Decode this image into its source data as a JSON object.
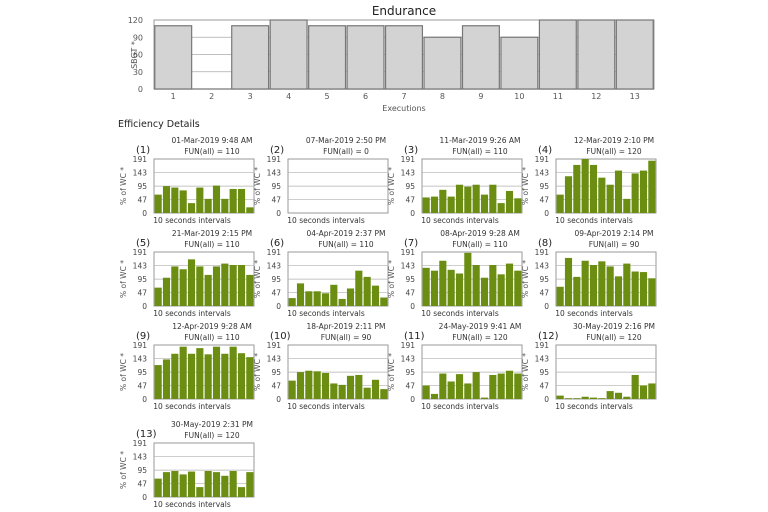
{
  "chart_data": [
    {
      "type": "bar",
      "title": "Endurance",
      "xlabel": "Executions",
      "ylabel": "SBGT *",
      "ylim": [
        0,
        120
      ],
      "yticks": [
        "0",
        "30",
        "60",
        "90",
        "120"
      ],
      "categories": [
        "1",
        "2",
        "3",
        "4",
        "5",
        "6",
        "7",
        "8",
        "9",
        "10",
        "11",
        "12",
        "13"
      ],
      "values": [
        110,
        0,
        110,
        120,
        110,
        110,
        110,
        90,
        110,
        90,
        120,
        120,
        120
      ],
      "grid": true,
      "bar_color": "#d3d3d3",
      "bar_edge": "#777777"
    }
  ],
  "section_title": "Efficiency Details",
  "details": {
    "ylabel": "% of WC *",
    "xlabel": "10 seconds intervals",
    "ylim": [
      0,
      191
    ],
    "yticks": [
      "0",
      "47",
      "95",
      "143",
      "191"
    ],
    "bar_color": "#6b8e12",
    "panels": [
      {
        "index": "(1)",
        "date": "01-Mar-2019 9:48 AM",
        "fun": "FUN(all) = 110",
        "values": [
          65,
          95,
          90,
          80,
          35,
          90,
          50,
          97,
          50,
          85,
          85,
          20
        ]
      },
      {
        "index": "(2)",
        "date": "07-Mar-2019 2:50 PM",
        "fun": "FUN(all) = 0",
        "values": []
      },
      {
        "index": "(3)",
        "date": "11-Mar-2019 9:26 AM",
        "fun": "FUN(all) = 110",
        "values": [
          55,
          58,
          82,
          58,
          100,
          93,
          100,
          65,
          100,
          35,
          78,
          52
        ]
      },
      {
        "index": "(4)",
        "date": "12-Mar-2019 2:10 PM",
        "fun": "FUN(all) = 120",
        "values": [
          65,
          130,
          170,
          191,
          170,
          125,
          100,
          150,
          50,
          140,
          150,
          185
        ]
      },
      {
        "index": "(5)",
        "date": "21-Mar-2019 2:15 PM",
        "fun": "FUN(all) = 110",
        "values": [
          65,
          100,
          140,
          130,
          165,
          140,
          110,
          140,
          150,
          145,
          145,
          110
        ]
      },
      {
        "index": "(6)",
        "date": "04-Apr-2019 2:37 PM",
        "fun": "FUN(all) = 110",
        "values": [
          28,
          80,
          52,
          52,
          45,
          75,
          25,
          62,
          125,
          103,
          72,
          30
        ]
      },
      {
        "index": "(7)",
        "date": "08-Apr-2019 9:28 AM",
        "fun": "FUN(all) = 110",
        "values": [
          135,
          125,
          160,
          128,
          115,
          188,
          145,
          100,
          145,
          112,
          150,
          125
        ]
      },
      {
        "index": "(8)",
        "date": "09-Apr-2019 2:14 PM",
        "fun": "FUN(all) = 90",
        "values": [
          68,
          170,
          103,
          160,
          145,
          158,
          140,
          105,
          150,
          122,
          120,
          98
        ]
      },
      {
        "index": "(9)",
        "date": "12-Apr-2019 9:28 AM",
        "fun": "FUN(all) = 110",
        "values": [
          120,
          140,
          160,
          185,
          160,
          180,
          158,
          185,
          160,
          185,
          162,
          148
        ]
      },
      {
        "index": "(10)",
        "date": "18-Apr-2019 2:11 PM",
        "fun": "FUN(all) = 90",
        "values": [
          65,
          95,
          100,
          98,
          92,
          55,
          50,
          82,
          85,
          40,
          68,
          35
        ]
      },
      {
        "index": "(11)",
        "date": "24-May-2019 9:41 AM",
        "fun": "FUN(all) = 120",
        "values": [
          48,
          18,
          90,
          62,
          88,
          55,
          95,
          5,
          85,
          90,
          100,
          90
        ]
      },
      {
        "index": "(12)",
        "date": "30-May-2019 2:16 PM",
        "fun": "FUN(all) = 120",
        "values": [
          12,
          3,
          3,
          8,
          5,
          3,
          28,
          22,
          8,
          85,
          48,
          55
        ]
      },
      {
        "index": "(13)",
        "date": "30-May-2019 2:31 PM",
        "fun": "FUN(all) = 120",
        "values": [
          65,
          88,
          92,
          80,
          90,
          35,
          92,
          88,
          75,
          92,
          35,
          88
        ]
      }
    ]
  }
}
